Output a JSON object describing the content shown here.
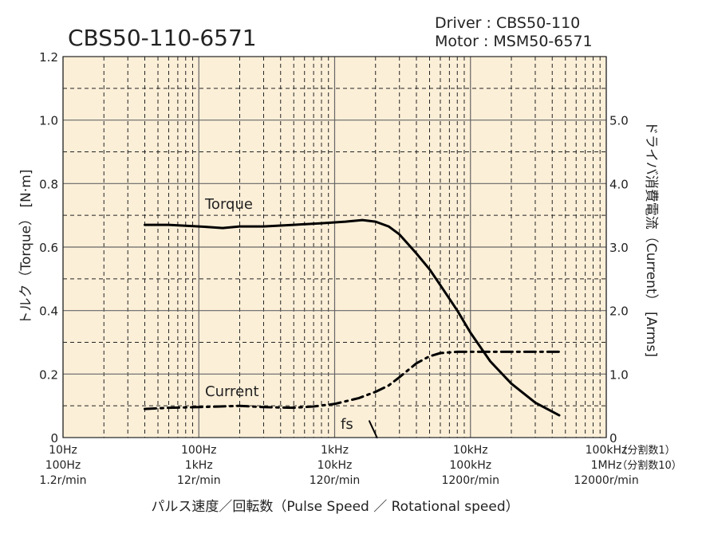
{
  "chart_data": {
    "type": "line",
    "title": "CBS50-110-6571",
    "subtitle": {
      "driver": "Driver : CBS50-110",
      "motor": "Motor : MSM50-6571"
    },
    "xlabel": "パルス速度／回転数（Pulse Speed ／ Rotational speed）",
    "ylabel": "トルク（Torque） [N·m]",
    "y2label": "ドライバ消費電流（Current） [Arms]",
    "x_scale": "log",
    "xlim": [
      10,
      100000
    ],
    "ylim": [
      0,
      1.2
    ],
    "y2lim": [
      0,
      6.0
    ],
    "grid": true,
    "x_ticks": [
      {
        "value": 10,
        "line1": "10Hz",
        "line2": "100Hz",
        "line3": "1.2r/min"
      },
      {
        "value": 100,
        "line1": "100Hz",
        "line2": "1kHz",
        "line3": "12r/min"
      },
      {
        "value": 1000,
        "line1": "1kHz",
        "line2": "10kHz",
        "line3": "120r/min"
      },
      {
        "value": 10000,
        "line1": "10kHz",
        "line2": "100kHz",
        "line3": "1200r/min"
      },
      {
        "value": 100000,
        "line1": "100kHz",
        "line2": "1MHz",
        "line3": "12000r/min"
      }
    ],
    "x_tick_notes": [
      "（分割数1）",
      "（分割数10）"
    ],
    "y_ticks": [
      "0",
      "0.2",
      "0.4",
      "0.6",
      "0.8",
      "1.0",
      "1.2"
    ],
    "y2_ticks": [
      "0",
      "1.0",
      "2.0",
      "3.0",
      "4.0",
      "5.0"
    ],
    "series": [
      {
        "name": "Torque",
        "axis": "left",
        "style": "solid",
        "color": "#000000",
        "x": [
          40,
          60,
          100,
          150,
          200,
          300,
          500,
          800,
          1200,
          1600,
          2000,
          2500,
          3000,
          4000,
          5000,
          6000,
          8000,
          10000,
          14000,
          20000,
          30000,
          45000
        ],
        "y": [
          0.67,
          0.67,
          0.665,
          0.66,
          0.665,
          0.665,
          0.67,
          0.675,
          0.68,
          0.685,
          0.68,
          0.665,
          0.64,
          0.58,
          0.53,
          0.48,
          0.4,
          0.33,
          0.24,
          0.17,
          0.11,
          0.07
        ]
      },
      {
        "name": "Current",
        "axis": "right",
        "style": "dash-dot",
        "color": "#000000",
        "x": [
          40,
          60,
          100,
          200,
          300,
          500,
          700,
          1000,
          1500,
          2000,
          2500,
          3000,
          4000,
          5000,
          6000,
          8000,
          10000,
          20000,
          45000
        ],
        "y": [
          0.45,
          0.47,
          0.48,
          0.5,
          0.48,
          0.47,
          0.49,
          0.53,
          0.62,
          0.72,
          0.82,
          0.95,
          1.17,
          1.28,
          1.33,
          1.35,
          1.35,
          1.35,
          1.35
        ]
      },
      {
        "name": "fs",
        "axis": "left",
        "style": "solid",
        "color": "#000000",
        "x": [
          1800,
          2050
        ],
        "y": [
          0.052,
          0.0
        ]
      }
    ],
    "colors": {
      "plot_bg": "#fcefd8",
      "grid": "#222222"
    }
  }
}
